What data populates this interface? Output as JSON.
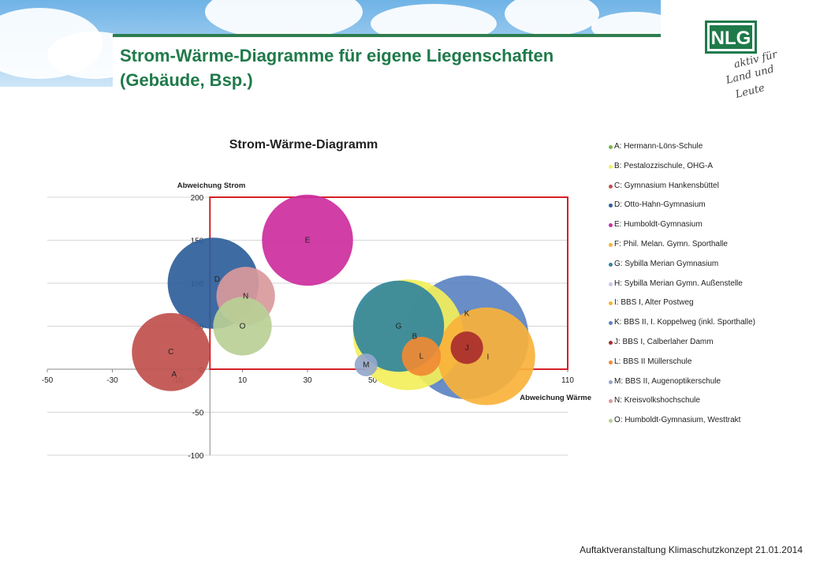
{
  "slide": {
    "title_line1": "Strom-Wärme-Diagramme für eigene Liegenschaften",
    "title_line2": "(Gebäude, Bsp.)",
    "footer": "Auftaktveranstaltung Klimaschutzkonzept  21.01.2014",
    "logo_text": "NLG",
    "logo_slogan_1": "aktiv für",
    "logo_slogan_2": "Land und",
    "logo_slogan_3": "Leute",
    "brand_color": "#1f7a4a"
  },
  "chart_data": {
    "type": "bubble",
    "title": "Strom-Wärme-Diagramm",
    "xlabel": "Abweichung Wärme",
    "ylabel": "Abweichung Strom",
    "xlim": [
      -50,
      110
    ],
    "ylim": [
      -100,
      200
    ],
    "xticks": [
      "-50",
      "-30",
      "-10",
      "10",
      "30",
      "50",
      "70",
      "90",
      "110"
    ],
    "yticks": [
      "200",
      "150",
      "100",
      "50",
      "0",
      "-50",
      "-100"
    ],
    "grid": true,
    "legend_position": "right",
    "highlight_region": {
      "x": [
        0,
        110
      ],
      "y": [
        0,
        200
      ],
      "color": "#d62027"
    },
    "series": [
      {
        "id": "A",
        "name": "A: Hermann-Löns-Schule",
        "x": -11,
        "y": -3,
        "r": 0,
        "color": "#77b94a"
      },
      {
        "id": "B",
        "name": "B: Pestalozzischule, OHG-A",
        "x": 61,
        "y": 40,
        "r": 17,
        "color": "#f3ef5a"
      },
      {
        "id": "C",
        "name": "C: Gymnasium Hankensbüttel",
        "x": -12,
        "y": 20,
        "r": 12,
        "color": "#c0504d"
      },
      {
        "id": "D",
        "name": "D: Otto-Hahn-Gymnasium",
        "x": 1,
        "y": 100,
        "r": 14,
        "color": "#2e5e9a"
      },
      {
        "id": "E",
        "name": "E: Humboldt-Gymnasium",
        "x": 30,
        "y": 150,
        "r": 14,
        "color": "#cc2e9e"
      },
      {
        "id": "F",
        "name": "F: Phil. Melan. Gymn. Sporthalle",
        "x": 85,
        "y": 15,
        "r": 0,
        "color": "#f8b23a"
      },
      {
        "id": "G",
        "name": "G: Sybilla Merian Gymnasium",
        "x": 58,
        "y": 50,
        "r": 14,
        "color": "#31859c"
      },
      {
        "id": "H",
        "name": "H: Sybilla Merian Gymn. Außenstelle",
        "x": 0,
        "y": 0,
        "r": 0,
        "color": "#c9c6e6"
      },
      {
        "id": "I",
        "name": "I: BBS I, Alter Postweg",
        "x": 85,
        "y": 15,
        "r": 15,
        "color": "#f8b23a"
      },
      {
        "id": "K",
        "name": "K: BBS II, I. Koppelweg (inkl. Sporthalle)",
        "x": 79,
        "y": 37,
        "r": 19,
        "color": "#5b83c2"
      },
      {
        "id": "J",
        "name": "J: BBS I, Calberlaher Damm",
        "x": 79,
        "y": 25,
        "r": 5,
        "color": "#a92c2c"
      },
      {
        "id": "L",
        "name": "L: BBS II Müllerschule",
        "x": 65,
        "y": 15,
        "r": 6,
        "color": "#f08a33"
      },
      {
        "id": "M",
        "name": "M: BBS II, Augenoptikerschule",
        "x": 48,
        "y": 5,
        "r": 3.5,
        "color": "#94a7cd"
      },
      {
        "id": "N",
        "name": "N: Kreisvolkshochschule",
        "x": 11,
        "y": 85,
        "r": 9,
        "color": "#d9999b"
      },
      {
        "id": "O",
        "name": "O: Humboldt-Gymnasium, Westtrakt",
        "x": 10,
        "y": 50,
        "r": 9,
        "color": "#b9cf96"
      }
    ]
  }
}
